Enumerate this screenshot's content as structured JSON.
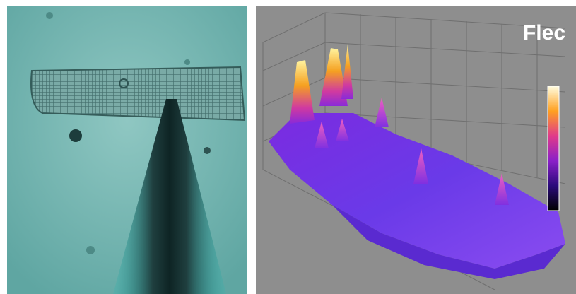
{
  "panels": {
    "right": {
      "label": "Flec"
    }
  }
}
